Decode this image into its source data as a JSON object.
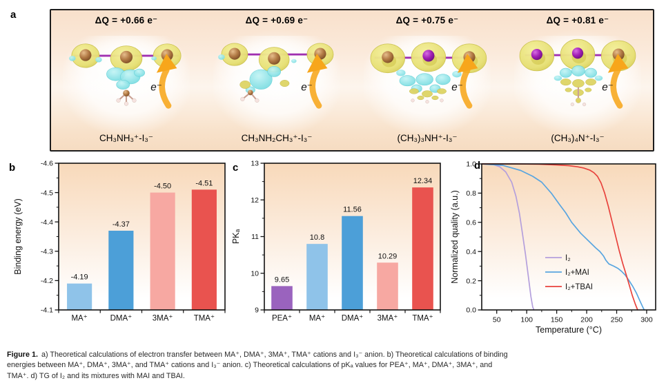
{
  "panel_a": {
    "label": "a",
    "cells": [
      {
        "dq": "ΔQ = +0.66 e⁻",
        "formula": "CH₃NH₃⁺-I₃⁻",
        "electron": "e⁻"
      },
      {
        "dq": "ΔQ = +0.69 e⁻",
        "formula": "CH₃NH₂CH₃⁺-I₃⁻",
        "electron": "e⁻"
      },
      {
        "dq": "ΔQ = +0.75 e⁻",
        "formula": "(CH₃)₃NH⁺-I₃⁻",
        "electron": "e⁻"
      },
      {
        "dq": "ΔQ = +0.81 e⁻",
        "formula": "(CH₃)₄N⁺-I₃⁻",
        "electron": "e⁻"
      }
    ]
  },
  "panel_b": {
    "label": "b"
  },
  "panel_c": {
    "label": "c"
  },
  "panel_d": {
    "label": "d"
  },
  "colors": {
    "plot_bg_top": "#f8d9ba",
    "plot_bg_mid": "#fcefe3",
    "plot_bg_bottom": "#ffffff",
    "frame": "#111111",
    "arrow": "#f7a61b"
  },
  "chart_data": [
    {
      "id": "b",
      "type": "bar",
      "ylabel": "Binding energy (eV)",
      "categories": [
        "MA⁺",
        "DMA⁺",
        "3MA⁺",
        "TMA⁺"
      ],
      "values": [
        -4.19,
        -4.37,
        -4.5,
        -4.51
      ],
      "value_labels": [
        "-4.19",
        "-4.37",
        "-4.50",
        "-4.51"
      ],
      "bar_colors": [
        "#8fc3e9",
        "#4c9fd8",
        "#f7a8a2",
        "#e9534f"
      ],
      "ylim_bottom": -4.1,
      "ylim_top": -4.6,
      "yticks": [
        -4.1,
        -4.2,
        -4.3,
        -4.4,
        -4.5,
        -4.6
      ],
      "ytick_labels": [
        "-4.1",
        "-4.2",
        "-4.3",
        "-4.4",
        "-4.5",
        "-4.6"
      ],
      "y_minor_step": 0.05,
      "grid": false
    },
    {
      "id": "c",
      "type": "bar",
      "ylabel": "PKₐ",
      "categories": [
        "PEA⁺",
        "MA⁺",
        "DMA⁺",
        "3MA⁺",
        "TMA⁺"
      ],
      "values": [
        9.65,
        10.8,
        11.56,
        10.29,
        12.34
      ],
      "value_labels": [
        "9.65",
        "10.8",
        "11.56",
        "10.29",
        "12.34"
      ],
      "bar_colors": [
        "#9a63be",
        "#8fc3e9",
        "#4c9fd8",
        "#f7a8a2",
        "#e9534f"
      ],
      "ylim_bottom": 9,
      "ylim_top": 13,
      "yticks": [
        9,
        10,
        11,
        12,
        13
      ],
      "ytick_labels": [
        "9",
        "10",
        "11",
        "12",
        "13"
      ],
      "y_minor_step": 0.5,
      "grid": false
    },
    {
      "id": "d",
      "type": "line",
      "xlabel": "Temperature (°C)",
      "ylabel": "Normalized quality (a.u.)",
      "xlim": [
        25,
        315
      ],
      "ylim": [
        0,
        1
      ],
      "xticks": [
        50,
        100,
        150,
        200,
        250,
        300
      ],
      "xtick_labels": [
        "50",
        "100",
        "150",
        "200",
        "250",
        "300"
      ],
      "yticks": [
        0.0,
        0.2,
        0.4,
        0.6,
        0.8,
        1.0
      ],
      "ytick_labels": [
        "0.0",
        "0.2",
        "0.4",
        "0.6",
        "0.8",
        "1.0"
      ],
      "x_minor_step": 25,
      "y_minor_step": 0.1,
      "grid": false,
      "legend_position": "inside-bottom-center",
      "series": [
        {
          "name": "I₂",
          "color": "#b49fdc",
          "points": [
            [
              25,
              1.0
            ],
            [
              45,
              0.995
            ],
            [
              55,
              0.98
            ],
            [
              65,
              0.945
            ],
            [
              75,
              0.875
            ],
            [
              82,
              0.78
            ],
            [
              88,
              0.66
            ],
            [
              93,
              0.52
            ],
            [
              98,
              0.38
            ],
            [
              103,
              0.22
            ],
            [
              107,
              0.09
            ],
            [
              110,
              0.02
            ],
            [
              112,
              0.0
            ]
          ]
        },
        {
          "name": "I₂+MAI",
          "color": "#58a5e0",
          "points": [
            [
              25,
              1.0
            ],
            [
              60,
              0.99
            ],
            [
              90,
              0.955
            ],
            [
              110,
              0.915
            ],
            [
              125,
              0.875
            ],
            [
              141,
              0.8
            ],
            [
              155,
              0.72
            ],
            [
              165,
              0.665
            ],
            [
              175,
              0.6
            ],
            [
              190,
              0.525
            ],
            [
              205,
              0.465
            ],
            [
              215,
              0.425
            ],
            [
              222,
              0.4
            ],
            [
              228,
              0.37
            ],
            [
              232,
              0.34
            ],
            [
              237,
              0.315
            ],
            [
              245,
              0.3
            ],
            [
              252,
              0.285
            ],
            [
              258,
              0.265
            ],
            [
              264,
              0.24
            ],
            [
              270,
              0.205
            ],
            [
              277,
              0.16
            ],
            [
              283,
              0.115
            ],
            [
              289,
              0.06
            ],
            [
              294,
              0.015
            ],
            [
              296,
              0.0
            ]
          ]
        },
        {
          "name": "I₂+TBAI",
          "color": "#e8423c",
          "points": [
            [
              25,
              1.0
            ],
            [
              80,
              1.0
            ],
            [
              120,
              0.998
            ],
            [
              150,
              0.993
            ],
            [
              170,
              0.988
            ],
            [
              185,
              0.98
            ],
            [
              195,
              0.972
            ],
            [
              205,
              0.958
            ],
            [
              212,
              0.94
            ],
            [
              218,
              0.915
            ],
            [
              224,
              0.87
            ],
            [
              230,
              0.8
            ],
            [
              236,
              0.71
            ],
            [
              242,
              0.61
            ],
            [
              248,
              0.51
            ],
            [
              254,
              0.41
            ],
            [
              260,
              0.32
            ],
            [
              266,
              0.24
            ],
            [
              271,
              0.17
            ],
            [
              276,
              0.1
            ],
            [
              281,
              0.04
            ],
            [
              285,
              0.0
            ]
          ]
        }
      ]
    }
  ],
  "caption": {
    "label": "Figure 1.",
    "line1": "a) Theoretical calculations of electron transfer between MA⁺, DMA⁺, 3MA⁺, TMA⁺ cations and I₃⁻ anion. b) Theoretical calculations of binding",
    "line2": "energies between MA⁺, DMA⁺, 3MA⁺, and TMA⁺ cations and I₃⁻ anion. c) Theoretical calculations of pKₐ values for PEA⁺, MA⁺, DMA⁺, 3MA⁺, and",
    "line3": "TMA⁺. d) TG of I₂ and its mixtures with MAI and TBAI."
  }
}
